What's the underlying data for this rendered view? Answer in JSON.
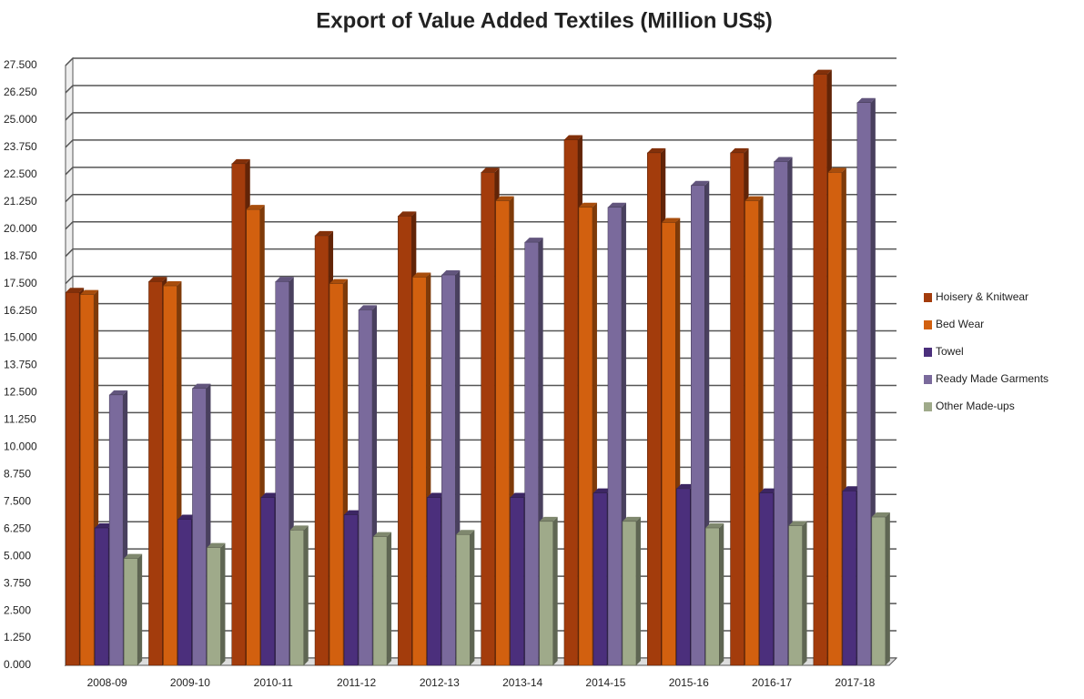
{
  "chart_data": {
    "type": "bar",
    "title": "Export of Value Added Textiles (Million US$)",
    "categories": [
      "2008-09",
      "2009-10",
      "2010-11",
      "2011-12",
      "2012-13",
      "2013-14",
      "2014-15",
      "2015-16",
      "2016-17",
      "2017-18"
    ],
    "series": [
      {
        "name": "Hoisery & Knitwear",
        "color": "#a33c0c",
        "values": [
          17.1,
          17.6,
          23.0,
          19.7,
          20.6,
          22.6,
          24.1,
          23.5,
          23.5,
          27.1
        ]
      },
      {
        "name": "Bed Wear",
        "color": "#d2600f",
        "values": [
          17.0,
          17.4,
          20.9,
          17.5,
          17.8,
          21.3,
          21.0,
          20.3,
          21.3,
          22.6
        ]
      },
      {
        "name": "Towel",
        "color": "#4b2f7c",
        "values": [
          6.3,
          6.7,
          7.7,
          6.9,
          7.7,
          7.7,
          7.9,
          8.1,
          7.9,
          8.0
        ]
      },
      {
        "name": "Ready Made Garments",
        "color": "#7a6a9c",
        "values": [
          12.4,
          12.7,
          17.6,
          16.3,
          17.9,
          19.4,
          21.0,
          22.0,
          23.1,
          25.8
        ]
      },
      {
        "name": "Other Made-ups",
        "color": "#9faa8a",
        "values": [
          4.9,
          5.4,
          6.2,
          5.9,
          6.0,
          6.6,
          6.6,
          6.3,
          6.4,
          6.8
        ]
      }
    ],
    "ylim": [
      0,
      27.5
    ],
    "yticks": [
      {
        "value": 0,
        "label": "0.000"
      },
      {
        "value": 1.25,
        "label": "1.250"
      },
      {
        "value": 2.5,
        "label": "2.500"
      },
      {
        "value": 3.75,
        "label": "3.750"
      },
      {
        "value": 5,
        "label": "5.000"
      },
      {
        "value": 6.25,
        "label": "6.250"
      },
      {
        "value": 7.5,
        "label": "7.500"
      },
      {
        "value": 8.75,
        "label": "8.750"
      },
      {
        "value": 10,
        "label": "10.000"
      },
      {
        "value": 11.25,
        "label": "11.250"
      },
      {
        "value": 12.5,
        "label": "12.500"
      },
      {
        "value": 13.75,
        "label": "13.750"
      },
      {
        "value": 15,
        "label": "15.000"
      },
      {
        "value": 16.25,
        "label": "16.250"
      },
      {
        "value": 17.5,
        "label": "17.500"
      },
      {
        "value": 18.75,
        "label": "18.750"
      },
      {
        "value": 20,
        "label": "20.000"
      },
      {
        "value": 21.25,
        "label": "21.250"
      },
      {
        "value": 22.5,
        "label": "22.500"
      },
      {
        "value": 23.75,
        "label": "23.750"
      },
      {
        "value": 25,
        "label": "25.000"
      },
      {
        "value": 26.25,
        "label": "26.250"
      },
      {
        "value": 27.5,
        "label": "27.500"
      }
    ],
    "grid": true,
    "legend": "right"
  }
}
